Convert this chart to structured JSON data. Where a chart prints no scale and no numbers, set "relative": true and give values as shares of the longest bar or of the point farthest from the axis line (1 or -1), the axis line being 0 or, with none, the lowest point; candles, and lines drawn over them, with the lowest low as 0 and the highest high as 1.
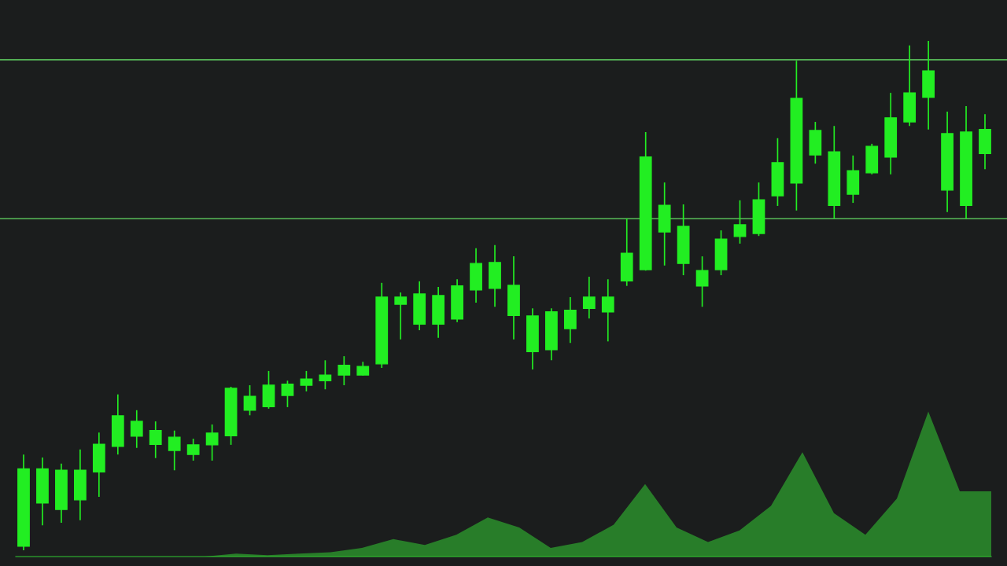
{
  "chart_data": [
    {
      "type": "candlestick",
      "relative": true,
      "color": "#22ee22",
      "categories": [
        null,
        null,
        null,
        null,
        null,
        null,
        null,
        null,
        null,
        null,
        null,
        null,
        null,
        null,
        null,
        null,
        null,
        null,
        null,
        null,
        null,
        null,
        null,
        null,
        null,
        null,
        null,
        null,
        null,
        null,
        null,
        null,
        null,
        null,
        null,
        null,
        null,
        null,
        null,
        null,
        null,
        null,
        null,
        null,
        null,
        null,
        null,
        null,
        null,
        null,
        null,
        null
      ],
      "ohlc": [
        [
          0.008,
          0.188,
          0,
          0.16
        ],
        [
          0.093,
          0.182,
          0.049,
          0.16
        ],
        [
          0.08,
          0.17,
          0.054,
          0.157
        ],
        [
          0.099,
          0.198,
          0.059,
          0.157
        ],
        [
          0.154,
          0.231,
          0.105,
          0.208
        ],
        [
          0.204,
          0.306,
          0.188,
          0.264
        ],
        [
          0.224,
          0.275,
          0.201,
          0.253
        ],
        [
          0.208,
          0.253,
          0.181,
          0.235
        ],
        [
          0.196,
          0.235,
          0.157,
          0.222
        ],
        [
          0.188,
          0.219,
          0.176,
          0.207
        ],
        [
          0.207,
          0.247,
          0.176,
          0.23
        ],
        [
          0.225,
          0.321,
          0.207,
          0.318
        ],
        [
          0.275,
          0.324,
          0.265,
          0.302
        ],
        [
          0.282,
          0.352,
          0.278,
          0.324
        ],
        [
          0.304,
          0.333,
          0.281,
          0.326
        ],
        [
          0.324,
          0.352,
          0.312,
          0.336
        ],
        [
          0.333,
          0.373,
          0.316,
          0.344
        ],
        [
          0.344,
          0.381,
          0.324,
          0.363
        ],
        [
          0.344,
          0.37,
          0.343,
          0.361
        ],
        [
          0.366,
          0.525,
          0.358,
          0.497
        ],
        [
          0.483,
          0.506,
          0.414,
          0.497
        ],
        [
          0.444,
          0.528,
          0.432,
          0.503
        ],
        [
          0.444,
          0.517,
          0.417,
          0.5
        ],
        [
          0.454,
          0.532,
          0.448,
          0.519
        ],
        [
          0.511,
          0.593,
          0.486,
          0.563
        ],
        [
          0.514,
          0.599,
          0.478,
          0.565
        ],
        [
          0.461,
          0.577,
          0.414,
          0.52
        ],
        [
          0.39,
          0.475,
          0.355,
          0.46
        ],
        [
          0.394,
          0.475,
          0.373,
          0.468
        ],
        [
          0.435,
          0.497,
          0.407,
          0.471
        ],
        [
          0.475,
          0.537,
          0.455,
          0.497
        ],
        [
          0.468,
          0.532,
          0.41,
          0.497
        ],
        [
          0.529,
          0.651,
          0.519,
          0.583
        ],
        [
          0.551,
          0.821,
          0.549,
          0.772
        ],
        [
          0.625,
          0.722,
          0.559,
          0.677
        ],
        [
          0.563,
          0.679,
          0.54,
          0.636
        ],
        [
          0.519,
          0.577,
          0.478,
          0.549
        ],
        [
          0.551,
          0.628,
          0.54,
          0.611
        ],
        [
          0.616,
          0.687,
          0.602,
          0.639
        ],
        [
          0.622,
          0.722,
          0.617,
          0.688
        ],
        [
          0.696,
          0.809,
          0.676,
          0.761
        ],
        [
          0.721,
          0.961,
          0.667,
          0.887
        ],
        [
          0.776,
          0.841,
          0.759,
          0.824
        ],
        [
          0.677,
          0.833,
          0.651,
          0.782
        ],
        [
          0.699,
          0.775,
          0.682,
          0.745
        ],
        [
          0.741,
          0.798,
          0.738,
          0.793
        ],
        [
          0.772,
          0.898,
          0.738,
          0.849
        ],
        [
          0.841,
          0.991,
          0.833,
          0.898
        ],
        [
          0.889,
          1.0,
          0.826,
          0.941
        ],
        [
          0.707,
          0.861,
          0.664,
          0.818
        ],
        [
          0.677,
          0.872,
          0.651,
          0.821
        ],
        [
          0.779,
          0.856,
          0.748,
          0.826
        ]
      ],
      "ref_lines": [
        {
          "axis": "y",
          "value": 0.963,
          "color": "#66dd66"
        },
        {
          "axis": "y",
          "value": 0.651,
          "color": "#66dd66"
        }
      ]
    },
    {
      "type": "area",
      "relative": true,
      "color": "#33cc33",
      "categories": [
        null,
        null,
        null,
        null,
        null,
        null,
        null,
        null,
        null,
        null,
        null,
        null,
        null,
        null,
        null,
        null,
        null,
        null,
        null,
        null,
        null,
        null,
        null,
        null,
        null,
        null,
        null,
        null,
        null,
        null,
        null,
        null
      ],
      "values": [
        0,
        0,
        0,
        0,
        0,
        0,
        0,
        0.02,
        0.01,
        0.02,
        0.03,
        0.06,
        0.12,
        0.08,
        0.15,
        0.27,
        0.2,
        0.06,
        0.1,
        0.22,
        0.5,
        0.2,
        0.1,
        0.18,
        0.35,
        0.72,
        0.3,
        0.15,
        0.4,
        1.0,
        0.45,
        0.45
      ]
    }
  ]
}
